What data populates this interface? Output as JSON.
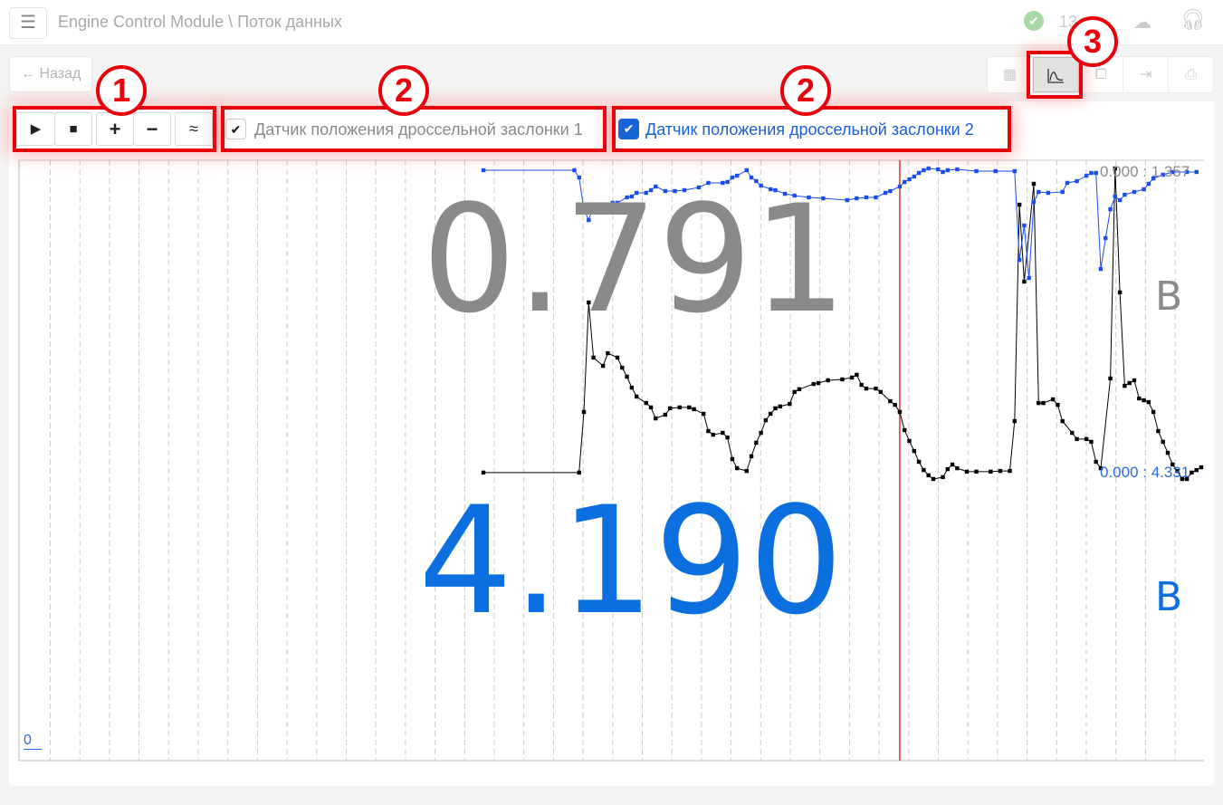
{
  "header": {
    "menu_icon": "hamburger-icon",
    "title": "Engine Control Module \\ Поток данных",
    "clock": "13",
    "status_icon": "check-circle-icon",
    "cloud_icon": "cloud-download-icon",
    "support_icon": "headset-icon"
  },
  "toolbar": {
    "back_label": "Назад",
    "view_buttons": [
      "grid-icon",
      "chart-icon",
      "frame-icon",
      "import-icon",
      "print-icon"
    ],
    "active_view": "chart-icon"
  },
  "controls": {
    "play": "▶",
    "stop": "■",
    "zoom_in": "+",
    "zoom_out": "−",
    "smooth": "≈"
  },
  "sensors": [
    {
      "label": "Датчик положения дроссельной заслонки 1",
      "checked": true,
      "color": "#000000",
      "value": "0.791",
      "unit": "В",
      "range": "0.000 : 1.357",
      "value_color": "#8a8a8a"
    },
    {
      "label": "Датчик положения дроссельной заслонки 2",
      "checked": true,
      "color": "#1a4df0",
      "value": "4.190",
      "unit": "В",
      "range": "0.000 : 4.331",
      "value_color": "#0b6fe0"
    }
  ],
  "axis": {
    "origin_label": "0"
  },
  "annotations": [
    "1",
    "2",
    "2",
    "3"
  ],
  "chart_data": {
    "type": "line",
    "grid": "vertical dashed",
    "cursor_sample": 87,
    "series": [
      {
        "sensor": 1,
        "range": [
          0,
          1.357
        ],
        "points": [
          [
            0,
            0.032
          ],
          [
            20,
            0.032
          ],
          [
            21,
            0.296
          ],
          [
            22,
            0.773
          ],
          [
            23,
            0.533
          ],
          [
            25,
            0.497
          ],
          [
            26,
            0.552
          ],
          [
            28,
            0.533
          ],
          [
            29,
            0.489
          ],
          [
            30,
            0.45
          ],
          [
            31,
            0.402
          ],
          [
            32,
            0.363
          ],
          [
            34,
            0.335
          ],
          [
            35,
            0.316
          ],
          [
            36,
            0.268
          ],
          [
            38,
            0.284
          ],
          [
            39,
            0.312
          ],
          [
            41,
            0.316
          ],
          [
            43,
            0.316
          ],
          [
            44,
            0.308
          ],
          [
            46,
            0.288
          ],
          [
            47,
            0.213
          ],
          [
            48,
            0.197
          ],
          [
            50,
            0.205
          ],
          [
            51,
            0.185
          ],
          [
            52,
            0.091
          ],
          [
            53,
            0.051
          ],
          [
            55,
            0.039
          ],
          [
            56,
            0.103
          ],
          [
            57,
            0.162
          ],
          [
            58,
            0.205
          ],
          [
            59,
            0.26
          ],
          [
            60,
            0.288
          ],
          [
            61,
            0.312
          ],
          [
            62,
            0.32
          ],
          [
            64,
            0.331
          ],
          [
            65,
            0.383
          ],
          [
            66,
            0.395
          ],
          [
            69,
            0.418
          ],
          [
            70,
            0.422
          ],
          [
            72,
            0.434
          ],
          [
            75,
            0.438
          ],
          [
            77,
            0.446
          ],
          [
            78,
            0.458
          ],
          [
            79,
            0.414
          ],
          [
            80,
            0.398
          ],
          [
            82,
            0.398
          ],
          [
            83,
            0.383
          ],
          [
            85,
            0.343
          ],
          [
            86,
            0.327
          ],
          [
            87,
            0.296
          ],
          [
            88,
            0.217
          ],
          [
            89,
            0.17
          ],
          [
            90,
            0.126
          ],
          [
            91,
            0.079
          ],
          [
            92,
            0.043
          ],
          [
            93,
            0.02
          ],
          [
            94,
            0.004
          ],
          [
            96,
            0.012
          ],
          [
            97,
            0.047
          ],
          [
            98,
            0.067
          ],
          [
            99,
            0.051
          ],
          [
            101,
            0.036
          ],
          [
            103,
            0.036
          ],
          [
            106,
            0.036
          ],
          [
            108,
            0.039
          ],
          [
            110,
            0.039
          ],
          [
            111,
            0.256
          ],
          [
            112,
            1.199
          ],
          [
            113,
            0.864
          ],
          [
            115,
            1.29
          ],
          [
            116,
            0.335
          ],
          [
            117,
            0.335
          ],
          [
            119,
            0.351
          ],
          [
            120,
            0.327
          ],
          [
            121,
            0.256
          ],
          [
            123,
            0.205
          ],
          [
            124,
            0.178
          ],
          [
            126,
            0.178
          ],
          [
            127,
            0.166
          ],
          [
            128,
            0.079
          ],
          [
            129,
            0.051
          ],
          [
            131,
            0.442
          ],
          [
            132,
            1.357
          ],
          [
            133,
            0.817
          ],
          [
            134,
            0.41
          ],
          [
            135,
            0.422
          ],
          [
            136,
            0.434
          ],
          [
            137,
            0.355
          ],
          [
            138,
            0.347
          ],
          [
            139,
            0.339
          ],
          [
            140,
            0.296
          ],
          [
            141,
            0.213
          ],
          [
            142,
            0.166
          ],
          [
            143,
            0.118
          ],
          [
            144,
            0.067
          ],
          [
            145,
            0.039
          ],
          [
            146,
            0.004
          ],
          [
            147,
            0.004
          ],
          [
            148,
            0.032
          ],
          [
            149,
            0.043
          ],
          [
            150,
            0.055
          ]
        ]
      },
      {
        "sensor": 2,
        "range": [
          0,
          4.331
        ],
        "points": [
          [
            0,
            4.306
          ],
          [
            19,
            4.306
          ],
          [
            20,
            4.205
          ],
          [
            21,
            3.764
          ],
          [
            22,
            3.613
          ],
          [
            23,
            3.815
          ],
          [
            24,
            3.827
          ],
          [
            25,
            3.802
          ],
          [
            26,
            3.777
          ],
          [
            27,
            3.853
          ],
          [
            28,
            3.853
          ],
          [
            30,
            3.928
          ],
          [
            31,
            3.941
          ],
          [
            32,
            3.991
          ],
          [
            34,
            3.991
          ],
          [
            35,
            4.029
          ],
          [
            36,
            4.079
          ],
          [
            38,
            4.016
          ],
          [
            40,
            4.016
          ],
          [
            42,
            4.029
          ],
          [
            45,
            4.067
          ],
          [
            47,
            4.13
          ],
          [
            50,
            4.13
          ],
          [
            51,
            4.142
          ],
          [
            52,
            4.205
          ],
          [
            53,
            4.23
          ],
          [
            55,
            4.306
          ],
          [
            56,
            4.205
          ],
          [
            57,
            4.155
          ],
          [
            58,
            4.092
          ],
          [
            60,
            4.041
          ],
          [
            61,
            4.029
          ],
          [
            63,
            3.978
          ],
          [
            65,
            3.953
          ],
          [
            68,
            3.928
          ],
          [
            71,
            3.915
          ],
          [
            76,
            3.89
          ],
          [
            78,
            3.915
          ],
          [
            80,
            3.928
          ],
          [
            82,
            3.928
          ],
          [
            84,
            3.991
          ],
          [
            85,
            4.016
          ],
          [
            87,
            4.079
          ],
          [
            88,
            4.142
          ],
          [
            89,
            4.18
          ],
          [
            90,
            4.218
          ],
          [
            91,
            4.268
          ],
          [
            92,
            4.306
          ],
          [
            93,
            4.331
          ],
          [
            95,
            4.318
          ],
          [
            96,
            4.281
          ],
          [
            97,
            4.306
          ],
          [
            99,
            4.318
          ],
          [
            103,
            4.293
          ],
          [
            107,
            4.293
          ],
          [
            111,
            4.293
          ],
          [
            112,
            3.059
          ],
          [
            113,
            3.538
          ],
          [
            114,
            2.808
          ],
          [
            115,
            3.865
          ],
          [
            116,
            4.004
          ],
          [
            118,
            3.991
          ],
          [
            121,
            4.004
          ],
          [
            122,
            4.13
          ],
          [
            124,
            4.155
          ],
          [
            126,
            4.23
          ],
          [
            127,
            4.268
          ],
          [
            128,
            4.268
          ],
          [
            129,
            2.933
          ],
          [
            130,
            3.362
          ],
          [
            131,
            3.764
          ],
          [
            132,
            3.941
          ],
          [
            133,
            3.89
          ],
          [
            134,
            3.966
          ],
          [
            136,
            4.004
          ],
          [
            138,
            4.041
          ],
          [
            139,
            4.117
          ],
          [
            140,
            4.192
          ],
          [
            142,
            4.243
          ],
          [
            144,
            4.281
          ],
          [
            147,
            4.281
          ],
          [
            149,
            4.281
          ]
        ]
      }
    ]
  }
}
